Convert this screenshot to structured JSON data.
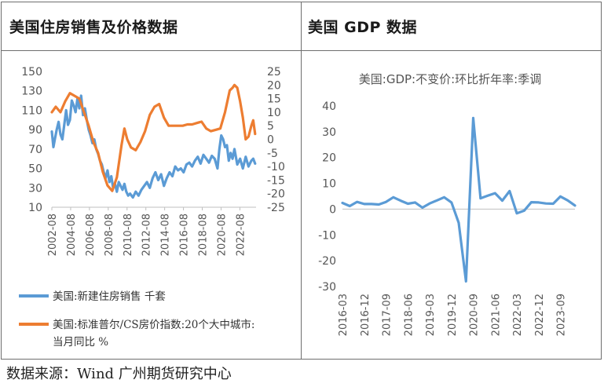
{
  "panels": {
    "left": {
      "title": "美国住房销售及价格数据"
    },
    "right": {
      "title": "美国 GDP 数据"
    }
  },
  "source": "数据来源：Wind 广州期货研究中心",
  "colors": {
    "blue": "#5b9bd5",
    "orange": "#ed7d31",
    "axis": "#bfbfbf",
    "text": "#595959"
  },
  "chart_data": [
    {
      "type": "line",
      "title": "",
      "x_tick_labels": [
        "2002-08",
        "2004-08",
        "2006-08",
        "2008-08",
        "2010-08",
        "2012-08",
        "2014-08",
        "2016-08",
        "2018-08",
        "2020-08",
        "2022-08"
      ],
      "x_range": [
        2002.58,
        2024.3
      ],
      "y_left": {
        "ylim": [
          10,
          150
        ],
        "ticks": [
          "150",
          "130",
          "110",
          "90",
          "70",
          "50",
          "30",
          "10"
        ]
      },
      "y_right": {
        "ylim": [
          -25,
          25
        ],
        "ticks": [
          "25",
          "20",
          "15",
          "10",
          "5",
          "0",
          "-5",
          "-10",
          "-15",
          "-20",
          "-25"
        ]
      },
      "series": [
        {
          "name": "美国:新建住房销售 千套",
          "axis": "left",
          "color": "#5b9bd5",
          "x": [
            2002.58,
            2002.75,
            2002.9,
            2003.1,
            2003.3,
            2003.5,
            2003.7,
            2003.9,
            2004.1,
            2004.3,
            2004.5,
            2004.7,
            2004.9,
            2005.1,
            2005.3,
            2005.5,
            2005.7,
            2005.9,
            2006.1,
            2006.3,
            2006.5,
            2006.7,
            2006.9,
            2007.1,
            2007.3,
            2007.5,
            2007.7,
            2007.9,
            2008.1,
            2008.3,
            2008.5,
            2008.7,
            2008.9,
            2009.1,
            2009.3,
            2009.5,
            2009.7,
            2009.9,
            2010.1,
            2010.3,
            2010.5,
            2010.7,
            2010.9,
            2011.2,
            2011.5,
            2011.8,
            2012.1,
            2012.4,
            2012.7,
            2013.0,
            2013.3,
            2013.6,
            2013.9,
            2014.2,
            2014.5,
            2014.8,
            2015.1,
            2015.4,
            2015.7,
            2016.0,
            2016.3,
            2016.6,
            2016.9,
            2017.2,
            2017.5,
            2017.8,
            2018.1,
            2018.4,
            2018.7,
            2019.0,
            2019.3,
            2019.6,
            2019.9,
            2020.2,
            2020.4,
            2020.6,
            2020.8,
            2021.0,
            2021.2,
            2021.4,
            2021.6,
            2021.8,
            2022.0,
            2022.3,
            2022.6,
            2022.9,
            2023.2,
            2023.5,
            2023.8,
            2024.0,
            2024.2
          ],
          "values": [
            88,
            72,
            80,
            90,
            98,
            85,
            80,
            95,
            110,
            95,
            100,
            120,
            115,
            108,
            122,
            112,
            125,
            105,
            112,
            100,
            90,
            84,
            76,
            80,
            70,
            65,
            58,
            54,
            46,
            40,
            48,
            36,
            42,
            30,
            34,
            26,
            36,
            32,
            28,
            34,
            26,
            22,
            24,
            20,
            26,
            22,
            28,
            32,
            36,
            30,
            40,
            46,
            38,
            44,
            32,
            40,
            46,
            42,
            52,
            48,
            50,
            46,
            54,
            56,
            52,
            58,
            62,
            55,
            64,
            60,
            56,
            63,
            60,
            50,
            70,
            84,
            80,
            72,
            74,
            58,
            66,
            60,
            70,
            54,
            60,
            50,
            62,
            52,
            58,
            60,
            55
          ]
        },
        {
          "name": "美国:标准普尔/CS房价指数:20个大中城市:当月同比 %",
          "axis": "right",
          "color": "#ed7d31",
          "x": [
            2002.58,
            2003.0,
            2003.5,
            2004.0,
            2004.5,
            2005.0,
            2005.5,
            2006.0,
            2006.5,
            2007.0,
            2007.5,
            2008.0,
            2008.5,
            2009.0,
            2009.5,
            2010.0,
            2010.3,
            2010.6,
            2011.0,
            2011.5,
            2012.0,
            2012.5,
            2013.0,
            2013.5,
            2014.0,
            2014.5,
            2015.0,
            2015.5,
            2016.0,
            2016.5,
            2017.0,
            2017.5,
            2018.0,
            2018.5,
            2019.0,
            2019.5,
            2020.0,
            2020.5,
            2021.0,
            2021.5,
            2021.8,
            2022.0,
            2022.3,
            2022.6,
            2022.9,
            2023.2,
            2023.5,
            2023.8,
            2024.0,
            2024.2
          ],
          "values": [
            10,
            12,
            10,
            14,
            17,
            16,
            15,
            10,
            5,
            -1,
            -5,
            -12,
            -17,
            -19,
            -14,
            -2,
            4,
            0,
            -3,
            -4,
            -1,
            3,
            9,
            12,
            13,
            8,
            5,
            5,
            5,
            5,
            5.5,
            5.5,
            6,
            6.5,
            4,
            3,
            3.5,
            4,
            10,
            18,
            19,
            20,
            19,
            14,
            8,
            0,
            1,
            5,
            7,
            2
          ]
        }
      ],
      "legend": [
        {
          "label": "美国:新建住房销售 千套",
          "color": "#5b9bd5"
        },
        {
          "label_line1": "美国:标准普尔/CS房价指数:20个大中城市:",
          "label_line2": "当月同比 %",
          "color": "#ed7d31"
        }
      ]
    },
    {
      "type": "line",
      "title": "美国:GDP:不变价:环比折年率:季调",
      "x_tick_labels": [
        "2016-03",
        "2016-12",
        "2017-09",
        "2018-06",
        "2019-03",
        "2019-12",
        "2020-09",
        "2021-06",
        "2022-03",
        "2022-12",
        "2023-09"
      ],
      "ylim": [
        -30,
        40
      ],
      "y_ticks": [
        "40",
        "30",
        "20",
        "10",
        "0",
        "-10",
        "-20",
        "-30"
      ],
      "series": [
        {
          "name": "美国:GDP:不变价:环比折年率:季调",
          "color": "#5b9bd5",
          "x": [
            "2016-03",
            "2016-06",
            "2016-09",
            "2016-12",
            "2017-03",
            "2017-06",
            "2017-09",
            "2017-12",
            "2018-03",
            "2018-06",
            "2018-09",
            "2018-12",
            "2019-03",
            "2019-06",
            "2019-09",
            "2019-12",
            "2020-03",
            "2020-06",
            "2020-09",
            "2020-12",
            "2021-03",
            "2021-06",
            "2021-09",
            "2021-12",
            "2022-03",
            "2022-06",
            "2022-09",
            "2022-12",
            "2023-03",
            "2023-06",
            "2023-09",
            "2023-12",
            "2024-03"
          ],
          "values": [
            2.4,
            1.2,
            2.8,
            2.0,
            2.0,
            1.8,
            2.8,
            4.6,
            3.3,
            2.1,
            2.6,
            0.6,
            2.2,
            3.4,
            4.6,
            2.6,
            -5.3,
            -28.0,
            35.3,
            4.2,
            5.2,
            6.2,
            3.3,
            7.0,
            -1.6,
            -0.6,
            2.7,
            2.6,
            2.2,
            2.1,
            4.9,
            3.4,
            1.4
          ]
        }
      ]
    }
  ]
}
